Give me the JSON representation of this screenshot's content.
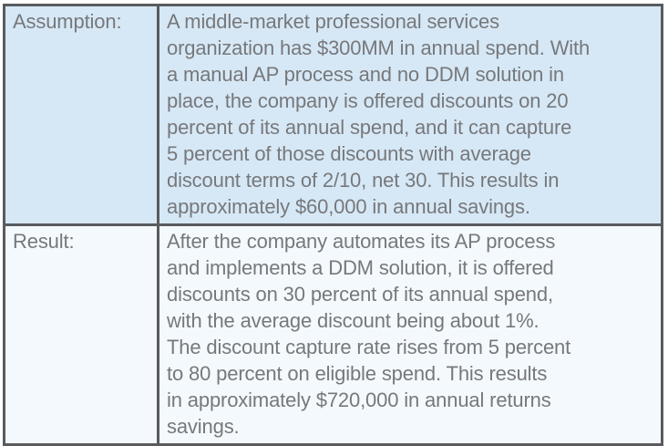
{
  "table": {
    "rows": [
      {
        "label": "Assumption:",
        "text": "A middle-market professional services\norganization has $300MM in annual spend. With\na manual AP process and no DDM solution in\nplace, the company is offered discounts on 20\npercent of its annual spend, and it can capture\n5 percent of those discounts with average\ndiscount terms of 2/10, net 30. This results in\napproximately $60,000 in annual savings."
      },
      {
        "label": "Result:",
        "text": "After the company automates its AP process\nand implements a DDM solution, it is offered\ndiscounts on 30 percent of its annual spend,\nwith the average discount being about 1%.\nThe discount capture rate rises from 5 percent\nto 80 percent on eligible spend. This results\nin approximately $720,000 in annual returns\nsavings."
      }
    ]
  },
  "colors": {
    "row1_bg": "#d6e8f6",
    "row2_bg": "#f4f9fd",
    "border": "#595b5e",
    "text": "#77787b",
    "page_bg": "#ffffff"
  }
}
